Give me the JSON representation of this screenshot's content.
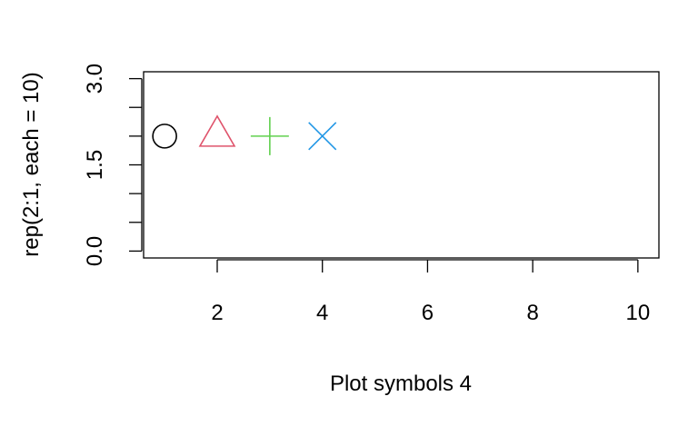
{
  "chart_data": {
    "type": "scatter",
    "title": "",
    "xlabel": "Plot symbols 4",
    "ylabel": "rep(2:1, each = 10)",
    "xlim": [
      0.6,
      10.4
    ],
    "ylim": [
      -0.12,
      3.12
    ],
    "x_ticks": [
      "2",
      "4",
      "6",
      "8",
      "10"
    ],
    "y_ticks": [
      "0.0",
      "1.5",
      "3.0"
    ],
    "y_minor_ticks": [
      0.5,
      1.0,
      2.0,
      2.5
    ],
    "points": [
      {
        "x": 1,
        "y": 2,
        "symbol": "circle",
        "color": "#000000"
      },
      {
        "x": 2,
        "y": 2,
        "symbol": "triangle",
        "color": "#DF536B"
      },
      {
        "x": 3,
        "y": 2,
        "symbol": "plus",
        "color": "#61D04F"
      },
      {
        "x": 4,
        "y": 2,
        "symbol": "cross",
        "color": "#2297E6"
      }
    ],
    "grid": false,
    "legend": "none"
  }
}
